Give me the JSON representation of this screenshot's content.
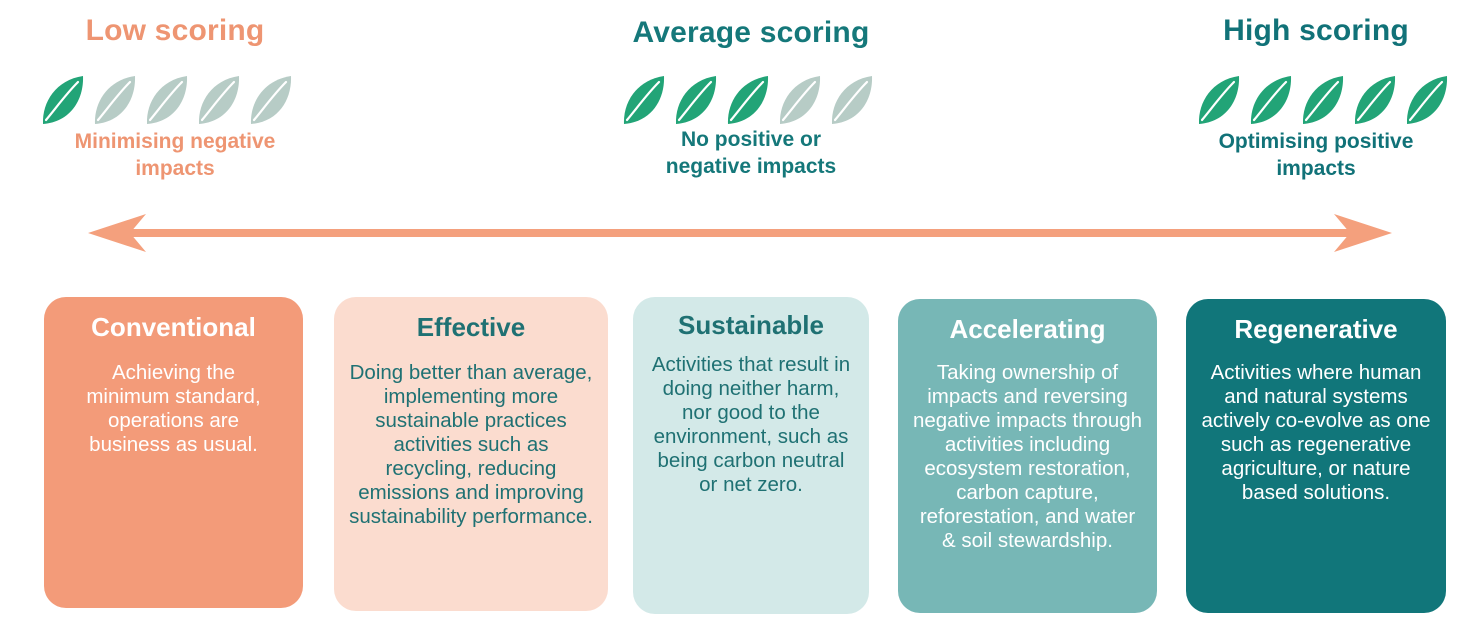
{
  "colors": {
    "low": "#EE9572",
    "average": "#15787A",
    "high": "#117278",
    "arrow": "#F4A07D",
    "leaf_active": "#22A477",
    "leaf_inactive": "#B7CCC6"
  },
  "groups": [
    {
      "title": "Low scoring",
      "subtitle": "Minimising negative impacts",
      "leaves_active": 1,
      "leaves_total": 5
    },
    {
      "title": "Average scoring",
      "subtitle": "No positive or negative impacts",
      "leaves_active": 3,
      "leaves_total": 5
    },
    {
      "title": "High scoring",
      "subtitle": "Optimising positive impacts",
      "leaves_active": 5,
      "leaves_total": 5
    }
  ],
  "cards": [
    {
      "title": "Conventional",
      "body": "Achieving the minimum standard, operations are business as usual.",
      "bg": "#F39B79",
      "color": "#FFFFFF"
    },
    {
      "title": "Effective",
      "body": "Doing better than average, implementing more sustainable practices activities such as recycling, reducing emissions and improving sustainability performance.",
      "bg": "#FBDCCF",
      "color": "#1F7173"
    },
    {
      "title": "Sustainable",
      "body": "Activities that result in doing neither harm, nor good to the environment, such as being carbon neutral or net zero.",
      "bg": "#D3E9E8",
      "color": "#1F7173"
    },
    {
      "title": "Accelerating",
      "body": "Taking ownership of impacts and reversing negative impacts through activities including ecosystem restoration, carbon capture, reforestation, and water & soil stewardship.",
      "bg": "#77B7B6",
      "color": "#FFFFFF"
    },
    {
      "title": "Regenerative",
      "body": "Activities where human and natural systems actively co-evolve as one such as regenerative agriculture, or nature based solutions.",
      "bg": "#11767A",
      "color": "#FFFFFF"
    }
  ]
}
